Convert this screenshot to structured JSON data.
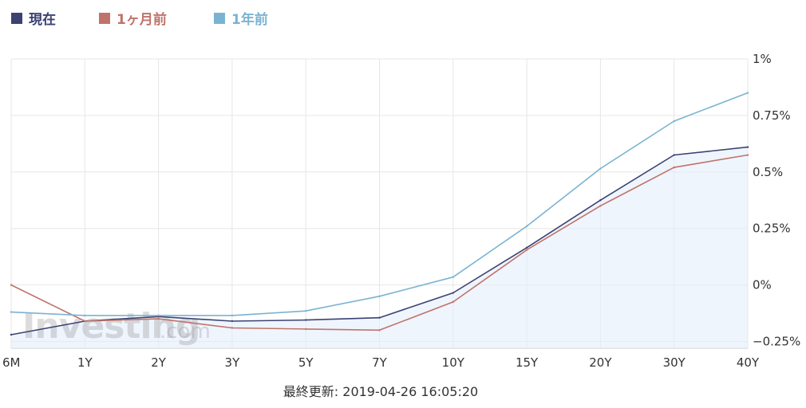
{
  "chart_data": {
    "type": "line",
    "categories": [
      "6M",
      "1Y",
      "2Y",
      "3Y",
      "5Y",
      "7Y",
      "10Y",
      "15Y",
      "20Y",
      "30Y",
      "40Y"
    ],
    "series": [
      {
        "name": "現在",
        "color": "#3b4272",
        "values": [
          -0.22,
          -0.16,
          -0.14,
          -0.16,
          -0.155,
          -0.145,
          -0.035,
          0.165,
          0.375,
          0.575,
          0.61
        ],
        "area": true
      },
      {
        "name": "1ヶ月前",
        "color": "#c0736a",
        "values": [
          0.0,
          -0.16,
          -0.15,
          -0.19,
          -0.195,
          -0.2,
          -0.075,
          0.155,
          0.35,
          0.52,
          0.575
        ]
      },
      {
        "name": "1年前",
        "color": "#7ab3d2",
        "values": [
          -0.12,
          -0.135,
          -0.135,
          -0.135,
          -0.115,
          -0.05,
          0.035,
          0.26,
          0.515,
          0.725,
          0.85
        ]
      }
    ],
    "y_ticks": [
      "1%",
      "0.75%",
      "0.5%",
      "0.25%",
      "0%",
      "−0.25%"
    ],
    "y_tick_values": [
      1,
      0.75,
      0.5,
      0.25,
      0,
      -0.25
    ],
    "ylim": [
      -0.28,
      1.0
    ],
    "grid": true,
    "legend_position": "top-left"
  },
  "footer": {
    "updated": "最終更新: 2019-04-26 16:05:20"
  },
  "watermark": {
    "main": "Investing",
    "suffix": ".com"
  }
}
